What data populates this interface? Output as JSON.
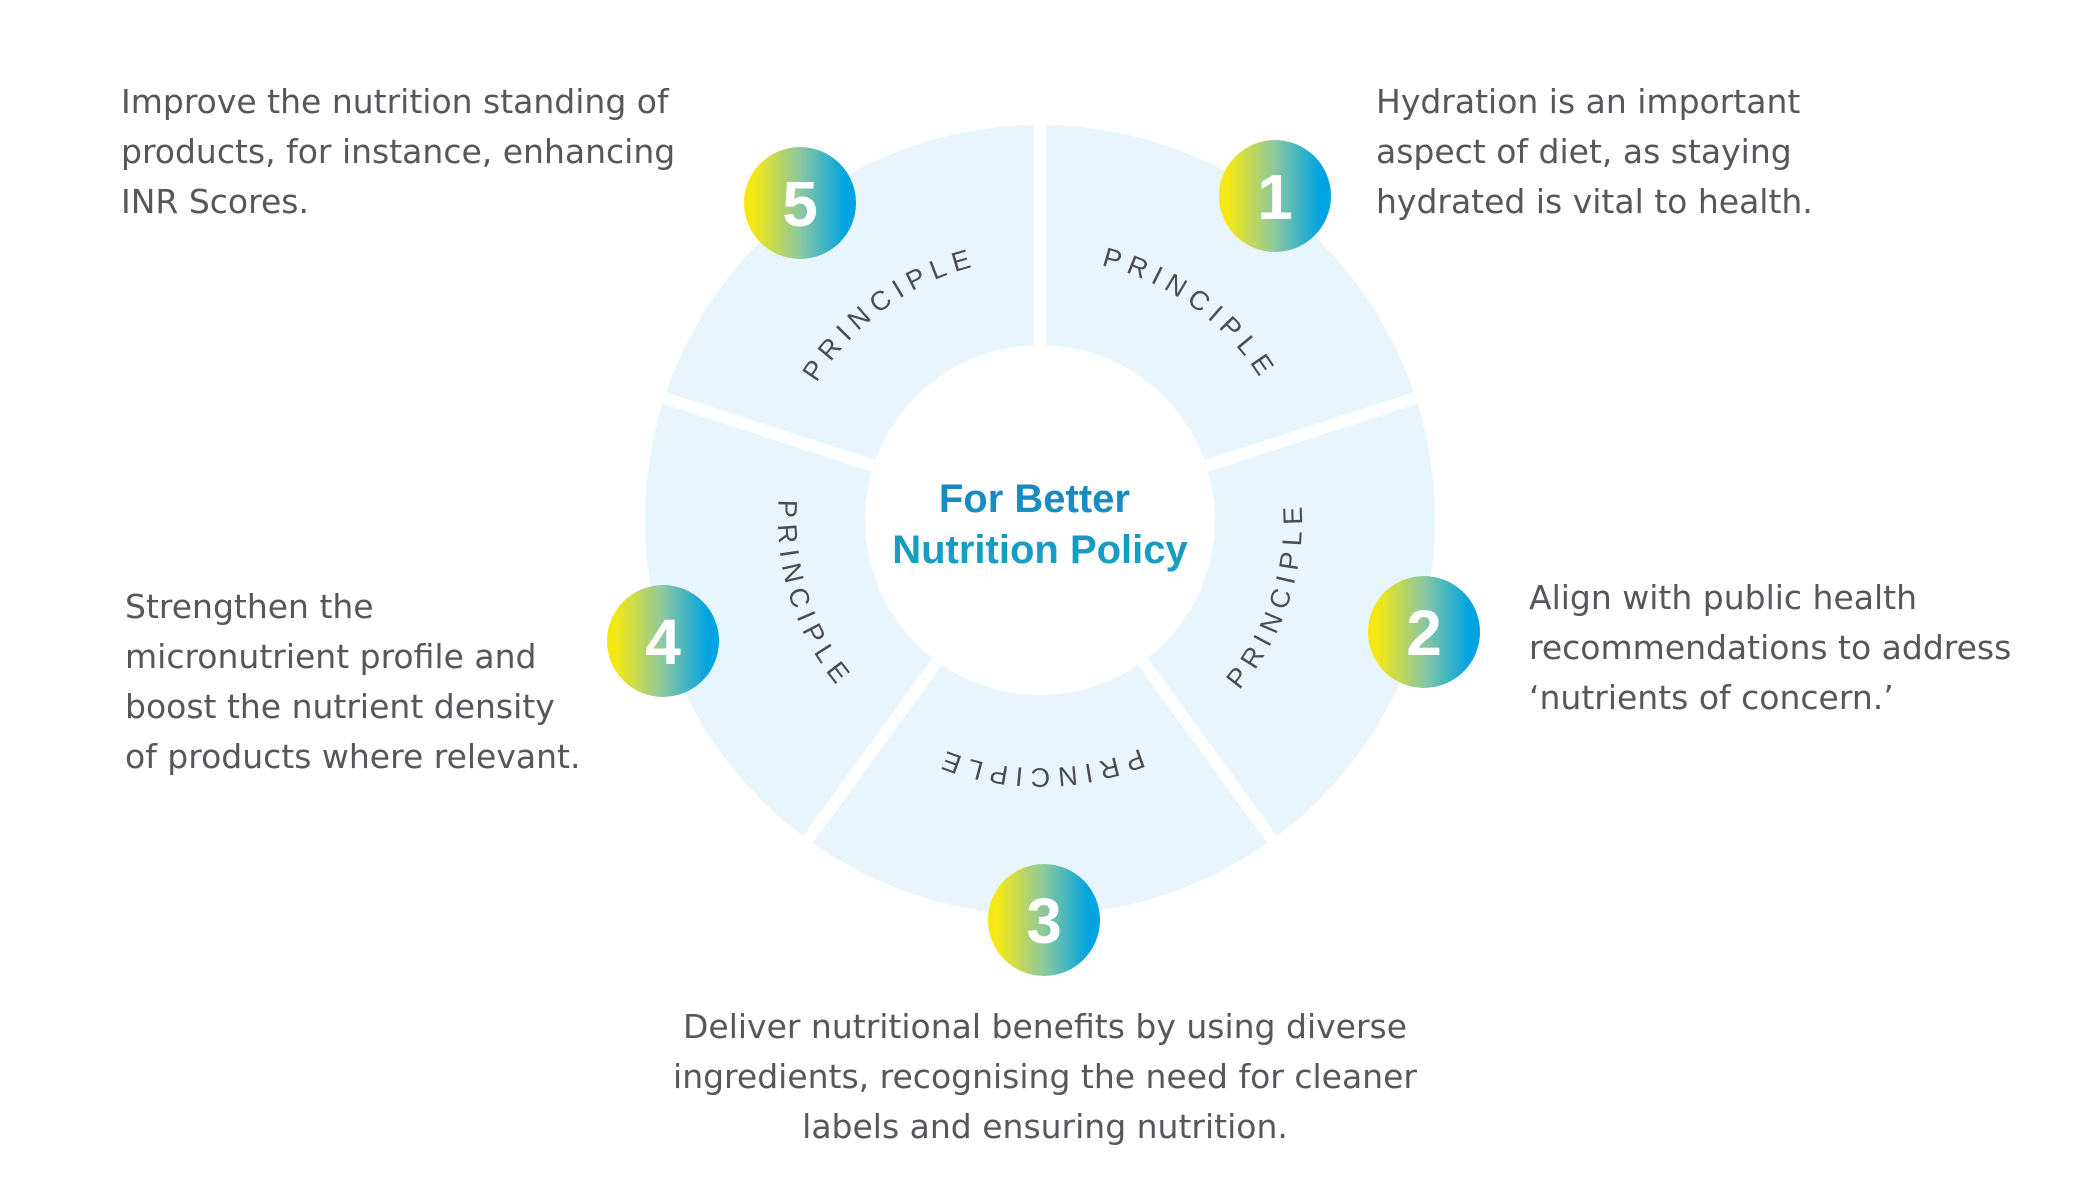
{
  "center_title": [
    "For Better",
    "Nutrition Policy"
  ],
  "segment_label": "PRINCIPLE",
  "colors": {
    "segment_fill": "#e9f5fc",
    "center_text": "#1b87bd",
    "label_text": "#4a4c50",
    "body_text": "#55575a",
    "badge_gradient": [
      "#f5e813",
      "#00a4e0"
    ]
  },
  "principles": [
    {
      "number": "1",
      "lines": [
        "Hydration is an important",
        "aspect of diet, as staying",
        "hydrated is vital to health."
      ]
    },
    {
      "number": "2",
      "lines": [
        "Align with public health",
        "recommendations to address",
        "‘nutrients of concern.’"
      ]
    },
    {
      "number": "3",
      "lines": [
        "Deliver nutritional benefits by using diverse",
        "ingredients, recognising the need for cleaner",
        "labels and ensuring nutrition."
      ]
    },
    {
      "number": "4",
      "lines": [
        "Strengthen the",
        "micronutrient profile and",
        "boost the nutrient density",
        "of products where relevant."
      ]
    },
    {
      "number": "5",
      "lines": [
        "Improve the nutrition standing of",
        "products, for instance, enhancing",
        "INR Scores."
      ]
    }
  ]
}
